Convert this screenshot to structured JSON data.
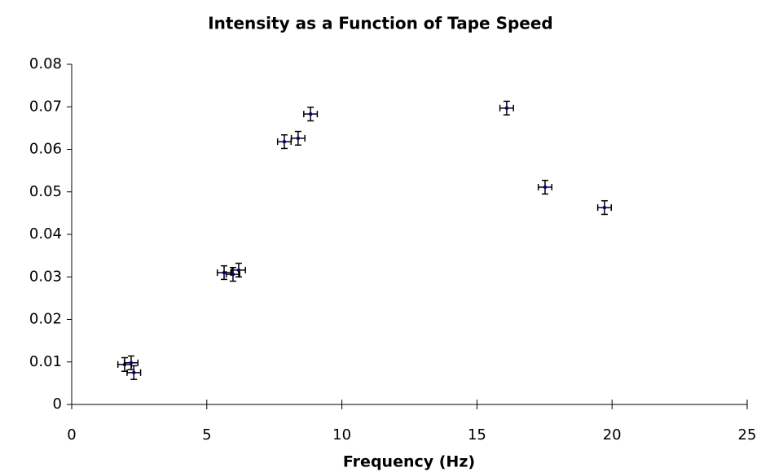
{
  "chart_data": {
    "type": "scatter",
    "title": "Intensity as a Function of Tape Speed",
    "x_label": "Frequency (Hz)",
    "xlim": [
      0,
      25
    ],
    "xticks": [
      0,
      5,
      10,
      15,
      20,
      25
    ],
    "ylim": [
      0,
      0.08
    ],
    "yticks": [
      0,
      0.01,
      0.02,
      0.03,
      0.04,
      0.05,
      0.06,
      0.07,
      0.08
    ],
    "series": [
      {
        "color": "#00008b",
        "x": [
          1.96,
          2.2,
          2.3,
          5.64,
          5.97,
          6.18,
          7.87,
          8.38,
          8.84,
          16.1,
          17.52,
          19.72
        ],
        "values": [
          0.0094,
          0.0098,
          0.0075,
          0.031,
          0.0306,
          0.0316,
          0.0618,
          0.0626,
          0.0683,
          0.0697,
          0.0511,
          0.0463
        ],
        "x_err": [
          0.25,
          0.25,
          0.25,
          0.25,
          0.25,
          0.25,
          0.25,
          0.25,
          0.25,
          0.25,
          0.25,
          0.25
        ],
        "y_err": [
          0.0016,
          0.0016,
          0.0016,
          0.0016,
          0.0016,
          0.0016,
          0.0016,
          0.0016,
          0.0016,
          0.0016,
          0.0016,
          0.0016
        ]
      }
    ]
  }
}
